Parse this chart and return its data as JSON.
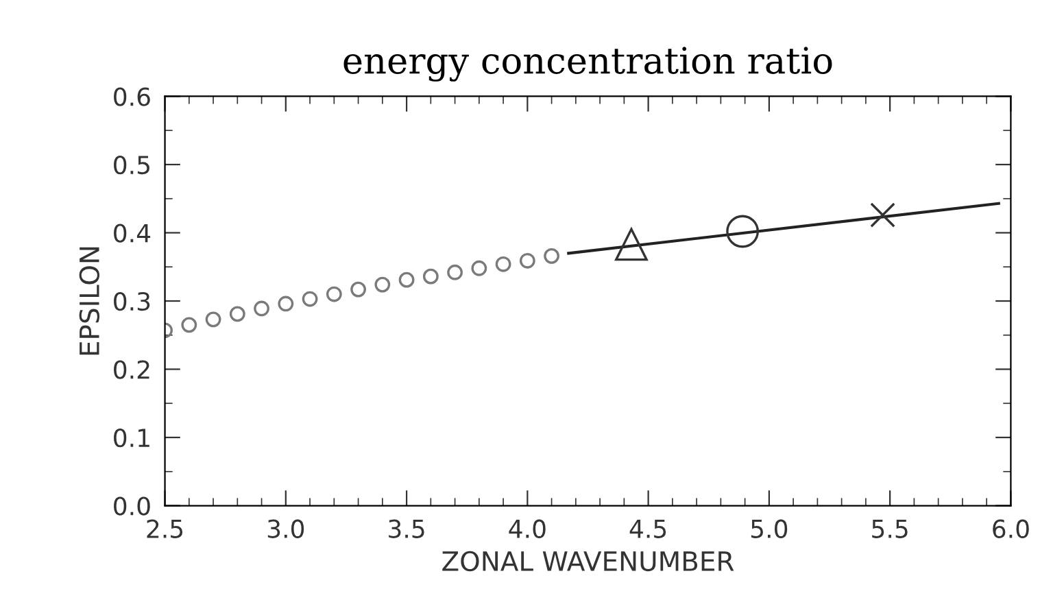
{
  "chart_data": {
    "type": "scatter",
    "title": "energy concentration ratio",
    "xlabel": "ZONAL WAVENUMBER",
    "ylabel": "EPSILON",
    "xlim": [
      2.5,
      6.0
    ],
    "xticks": [
      2.5,
      {
        "value": 3,
        "label": "3.0"
      },
      3.5,
      {
        "value": 4,
        "label": "4.0"
      },
      4.5,
      {
        "value": 5,
        "label": "5.0"
      },
      5.5,
      {
        "value": 6,
        "label": "6.0"
      }
    ],
    "ylim": [
      0.0,
      0.6
    ],
    "yticks": [
      {
        "value": 0,
        "label": "0.0"
      },
      0.1,
      0.2,
      0.3,
      0.4,
      0.5,
      0.6
    ],
    "grid": false,
    "series": [
      {
        "marker": "circle",
        "color": "#7a7a7a",
        "x": [
          2.5,
          2.6,
          2.7,
          2.8,
          2.9,
          3.0,
          3.1,
          3.2,
          3.3,
          3.4,
          3.5,
          3.6,
          3.7,
          3.8,
          3.9,
          4.0,
          4.1
        ],
        "values": [
          0.257,
          0.265,
          0.273,
          0.281,
          0.289,
          0.296,
          0.303,
          0.31,
          0.317,
          0.324,
          0.331,
          0.336,
          0.342,
          0.348,
          0.354,
          0.359,
          0.366
        ]
      },
      {
        "type": "line",
        "marker": "none",
        "line_style": "solid",
        "color": "#222222",
        "x": [
          4.17,
          5.95
        ],
        "values": [
          0.37,
          0.443
        ]
      },
      {
        "type": "scatter",
        "marker": "triangle",
        "color": "#333333",
        "x": [
          4.43
        ],
        "values": [
          0.383
        ]
      },
      {
        "type": "scatter",
        "marker": "circle",
        "color": "#333333",
        "x": [
          4.89
        ],
        "values": [
          0.402
        ]
      },
      {
        "type": "scatter",
        "marker": "cross",
        "color": "#333333",
        "x": [
          5.47
        ],
        "values": [
          0.426
        ]
      }
    ]
  }
}
